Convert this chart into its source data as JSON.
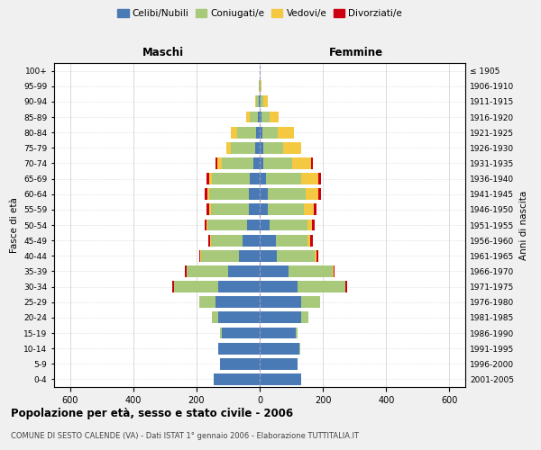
{
  "age_groups": [
    "0-4",
    "5-9",
    "10-14",
    "15-19",
    "20-24",
    "25-29",
    "30-34",
    "35-39",
    "40-44",
    "45-49",
    "50-54",
    "55-59",
    "60-64",
    "65-69",
    "70-74",
    "75-79",
    "80-84",
    "85-89",
    "90-94",
    "95-99",
    "100+"
  ],
  "birth_years": [
    "2001-2005",
    "1996-2000",
    "1991-1995",
    "1986-1990",
    "1981-1985",
    "1976-1980",
    "1971-1975",
    "1966-1970",
    "1961-1965",
    "1956-1960",
    "1951-1955",
    "1946-1950",
    "1941-1945",
    "1936-1940",
    "1931-1935",
    "1926-1930",
    "1921-1925",
    "1916-1920",
    "1911-1915",
    "1906-1910",
    "≤ 1905"
  ],
  "male": {
    "celibi": [
      145,
      125,
      130,
      120,
      130,
      140,
      130,
      100,
      65,
      55,
      40,
      35,
      35,
      30,
      20,
      15,
      10,
      5,
      2,
      1,
      0
    ],
    "coniugati": [
      0,
      0,
      2,
      5,
      20,
      50,
      140,
      130,
      120,
      100,
      125,
      120,
      125,
      120,
      100,
      75,
      60,
      25,
      8,
      2,
      0
    ],
    "vedovi": [
      0,
      0,
      0,
      0,
      0,
      0,
      2,
      2,
      2,
      2,
      3,
      5,
      5,
      10,
      15,
      15,
      20,
      12,
      5,
      1,
      0
    ],
    "divorziati": [
      0,
      0,
      0,
      0,
      0,
      0,
      5,
      5,
      5,
      5,
      7,
      8,
      10,
      8,
      5,
      0,
      0,
      0,
      0,
      0,
      0
    ]
  },
  "female": {
    "nubili": [
      130,
      120,
      125,
      115,
      130,
      130,
      120,
      90,
      55,
      50,
      30,
      25,
      25,
      20,
      12,
      10,
      8,
      5,
      2,
      1,
      0
    ],
    "coniugate": [
      0,
      0,
      2,
      5,
      25,
      60,
      150,
      140,
      120,
      100,
      120,
      115,
      120,
      110,
      90,
      65,
      50,
      25,
      10,
      2,
      0
    ],
    "vedove": [
      0,
      0,
      0,
      0,
      0,
      0,
      2,
      3,
      5,
      10,
      15,
      30,
      40,
      55,
      60,
      55,
      50,
      30,
      15,
      3,
      0
    ],
    "divorziate": [
      0,
      0,
      0,
      0,
      0,
      0,
      5,
      5,
      5,
      8,
      8,
      10,
      10,
      8,
      5,
      0,
      0,
      0,
      0,
      0,
      0
    ]
  },
  "colors": {
    "celibi": "#4a7ab5",
    "coniugati": "#a8c97a",
    "vedovi": "#f5c842",
    "divorziati": "#cc0011"
  },
  "xlim": 650,
  "title": "Popolazione per età, sesso e stato civile - 2006",
  "subtitle": "COMUNE DI SESTO CALENDE (VA) - Dati ISTAT 1° gennaio 2006 - Elaborazione TUTTITALIA.IT",
  "ylabel_left": "Fasce di età",
  "ylabel_right": "Anni di nascita",
  "xlabel_left": "Maschi",
  "xlabel_right": "Femmine",
  "legend_labels": [
    "Celibi/Nubili",
    "Coniugati/e",
    "Vedovi/e",
    "Divorziati/e"
  ],
  "background_color": "#f0f0f0",
  "plot_background": "#ffffff",
  "grid_color": "#cccccc"
}
